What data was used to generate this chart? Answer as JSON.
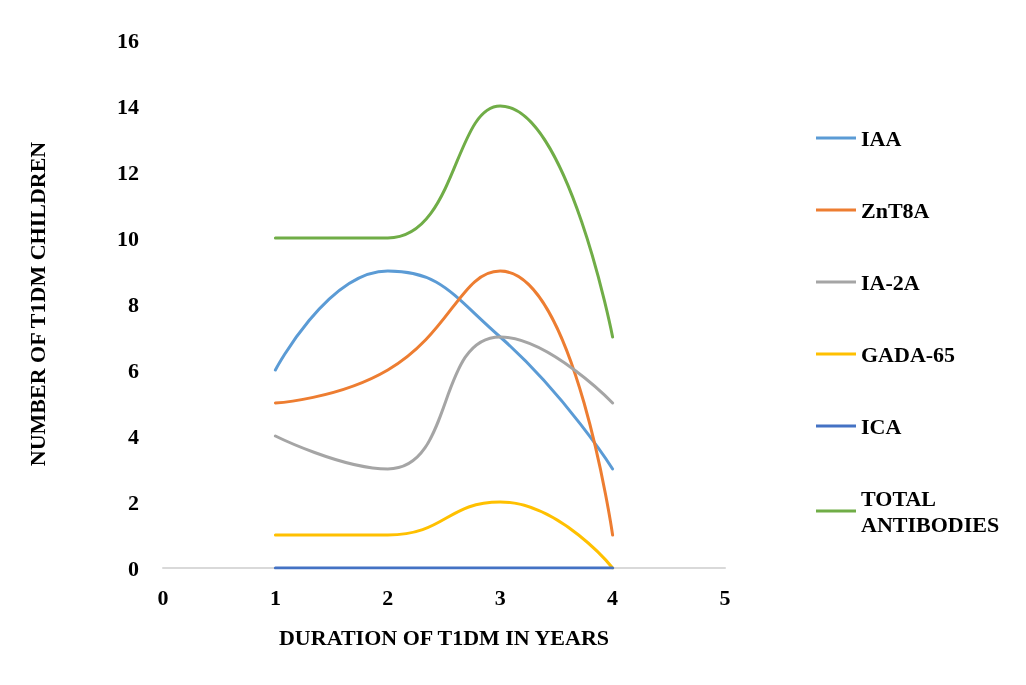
{
  "chart_data": {
    "type": "line",
    "xlabel": "DURATION OF T1DM IN YEARS",
    "ylabel": "NUMBER OF T1DM CHILDREN",
    "x": [
      1,
      2,
      3,
      4
    ],
    "series": [
      {
        "name": "IAA",
        "color": "#5b9bd5",
        "values": [
          6,
          9,
          7,
          3
        ]
      },
      {
        "name": "ZnT8A",
        "color": "#ed7d31",
        "values": [
          5,
          6,
          9,
          1
        ]
      },
      {
        "name": "IA-2A",
        "color": "#a5a5a5",
        "values": [
          4,
          3,
          7,
          5
        ]
      },
      {
        "name": "GADA-65",
        "color": "#ffc000",
        "values": [
          1,
          1,
          2,
          0
        ]
      },
      {
        "name": "ICA",
        "color": "#4472c4",
        "values": [
          0,
          0,
          0,
          0
        ]
      },
      {
        "name": "TOTAL ANTIBODIES",
        "color": "#70ad47",
        "values": [
          10,
          10,
          14,
          7
        ]
      }
    ],
    "xlim": [
      0,
      5
    ],
    "xticks": [
      0,
      1,
      2,
      3,
      4,
      5
    ],
    "ylim": [
      0,
      16
    ],
    "yticks": [
      0,
      2,
      4,
      6,
      8,
      10,
      12,
      14,
      16
    ],
    "grid": false,
    "legend": "right",
    "marker": "none",
    "line_style": "solid"
  }
}
